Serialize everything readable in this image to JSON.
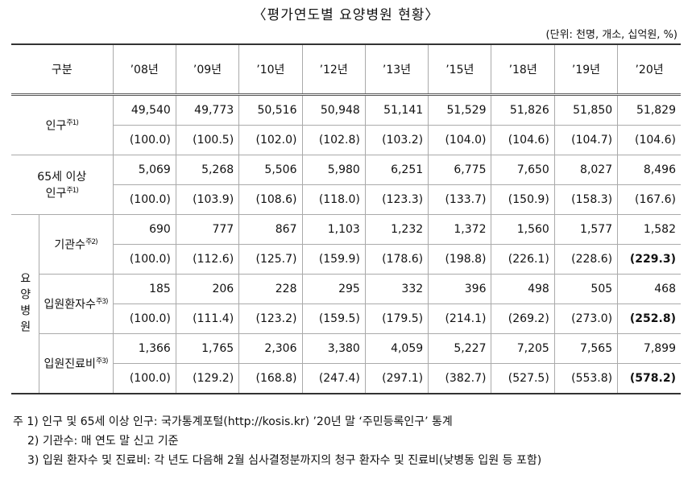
{
  "title": "〈평가연도별 요양병원 현황〉",
  "unit": "(단위: 천명, 개소, 십억원, %)",
  "table": {
    "header": [
      "구분",
      "’08년",
      "’09년",
      "’10년",
      "’12년",
      "’13년",
      "’15년",
      "’18년",
      "’19년",
      "’20년"
    ],
    "sections": [
      {
        "label": [
          "인구"
        ],
        "note": "주1)",
        "rows": [
          [
            "49,540",
            "49,773",
            "50,516",
            "50,948",
            "51,141",
            "51,529",
            "51,826",
            "51,850",
            "51,829"
          ],
          [
            "(100.0)",
            "(100.5)",
            "(102.0)",
            "(102.8)",
            "(103.2)",
            "(104.0)",
            "(104.6)",
            "(104.7)",
            "(104.6)"
          ]
        ]
      },
      {
        "label": [
          "65세 이상",
          "인구"
        ],
        "note": "주1)",
        "rows": [
          [
            "5,069",
            "5,268",
            "5,506",
            "5,980",
            "6,251",
            "6,775",
            "7,650",
            "8,027",
            "8,496"
          ],
          [
            "(100.0)",
            "(103.9)",
            "(108.6)",
            "(118.0)",
            "(123.3)",
            "(133.7)",
            "(150.9)",
            "(158.3)",
            "(167.6)"
          ]
        ]
      }
    ],
    "group": {
      "label": "요양병원",
      "sections": [
        {
          "label": [
            "기관수"
          ],
          "note": "주2)",
          "rows": [
            [
              "690",
              "777",
              "867",
              "1,103",
              "1,232",
              "1,372",
              "1,560",
              "1,577",
              "1,582"
            ],
            [
              "(100.0)",
              "(112.6)",
              "(125.7)",
              "(159.9)",
              "(178.6)",
              "(198.8)",
              "(226.1)",
              "(228.6)",
              "(229.3)"
            ]
          ]
        },
        {
          "label": [
            "입원환자수"
          ],
          "note": "주3)",
          "rows": [
            [
              "185",
              "206",
              "228",
              "295",
              "332",
              "396",
              "498",
              "505",
              "468"
            ],
            [
              "(100.0)",
              "(111.4)",
              "(123.2)",
              "(159.5)",
              "(179.5)",
              "(214.1)",
              "(269.2)",
              "(273.0)",
              "(252.8)"
            ]
          ]
        },
        {
          "label": [
            "입원진료비"
          ],
          "note": "주3)",
          "rows": [
            [
              "1,366",
              "1,765",
              "2,306",
              "3,380",
              "4,059",
              "5,227",
              "7,205",
              "7,565",
              "7,899"
            ],
            [
              "(100.0)",
              "(129.2)",
              "(168.8)",
              "(247.4)",
              "(297.1)",
              "(382.7)",
              "(527.5)",
              "(553.8)",
              "(578.2)"
            ]
          ]
        }
      ]
    }
  },
  "notes": [
    "주 1) 인구 및 65세 이상 인구: 국가통계포털(http://kosis.kr) ’20년 말 ‘주민등록인구’ 통계",
    "2) 기관수: 매 연도 말 신고 기준",
    "3) 입원 환자수 및 진료비: 각 년도 다음해 2월 심사결정분까지의 청구 환자수 및 진료비(낮병동 입원 등 포함)"
  ]
}
